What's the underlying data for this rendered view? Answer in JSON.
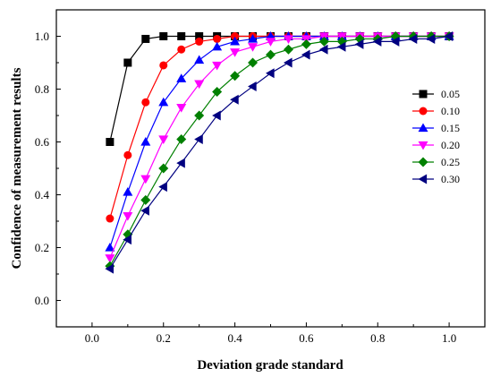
{
  "chart_data": {
    "type": "line",
    "title": "",
    "xlabel": "Deviation grade standard",
    "ylabel": "Confidence of measurement results",
    "xlim": [
      -0.1,
      1.1
    ],
    "ylim": [
      -0.1,
      1.1
    ],
    "x_ticks": [
      "0.0",
      "0.2",
      "0.4",
      "0.6",
      "0.8",
      "1.0"
    ],
    "y_ticks": [
      "0.0",
      "0.2",
      "0.4",
      "0.6",
      "0.8",
      "1.0"
    ],
    "legend_position": "right",
    "x": [
      0.05,
      0.1,
      0.15,
      0.2,
      0.25,
      0.3,
      0.35,
      0.4,
      0.45,
      0.5,
      0.55,
      0.6,
      0.65,
      0.7,
      0.75,
      0.8,
      0.85,
      0.9,
      0.95,
      1.0
    ],
    "series": [
      {
        "name": "0.05",
        "color": "#000000",
        "marker": "square",
        "values": [
          0.6,
          0.9,
          0.99,
          1.0,
          1.0,
          1.0,
          1.0,
          1.0,
          1.0,
          1.0,
          1.0,
          1.0,
          1.0,
          1.0,
          1.0,
          1.0,
          1.0,
          1.0,
          1.0,
          1.0
        ]
      },
      {
        "name": "0.10",
        "color": "#ff0000",
        "marker": "circle",
        "values": [
          0.31,
          0.55,
          0.75,
          0.89,
          0.95,
          0.98,
          0.99,
          1.0,
          1.0,
          1.0,
          1.0,
          1.0,
          1.0,
          1.0,
          1.0,
          1.0,
          1.0,
          1.0,
          1.0,
          1.0
        ]
      },
      {
        "name": "0.15",
        "color": "#0000ff",
        "marker": "triangle-up",
        "values": [
          0.2,
          0.41,
          0.6,
          0.75,
          0.84,
          0.91,
          0.96,
          0.98,
          0.99,
          1.0,
          1.0,
          1.0,
          1.0,
          1.0,
          1.0,
          1.0,
          1.0,
          1.0,
          1.0,
          1.0
        ]
      },
      {
        "name": "0.20",
        "color": "#ff00ff",
        "marker": "triangle-down",
        "values": [
          0.16,
          0.32,
          0.46,
          0.61,
          0.73,
          0.82,
          0.89,
          0.94,
          0.96,
          0.98,
          0.99,
          0.99,
          1.0,
          1.0,
          1.0,
          1.0,
          1.0,
          1.0,
          1.0,
          1.0
        ]
      },
      {
        "name": "0.25",
        "color": "#008000",
        "marker": "diamond",
        "values": [
          0.13,
          0.25,
          0.38,
          0.5,
          0.61,
          0.7,
          0.79,
          0.85,
          0.9,
          0.93,
          0.95,
          0.97,
          0.98,
          0.98,
          0.99,
          0.99,
          1.0,
          1.0,
          1.0,
          1.0
        ]
      },
      {
        "name": "0.30",
        "color": "#000080",
        "marker": "triangle-left",
        "values": [
          0.12,
          0.23,
          0.34,
          0.43,
          0.52,
          0.61,
          0.7,
          0.76,
          0.81,
          0.86,
          0.9,
          0.93,
          0.95,
          0.96,
          0.97,
          0.98,
          0.98,
          0.99,
          0.99,
          1.0
        ]
      }
    ]
  }
}
